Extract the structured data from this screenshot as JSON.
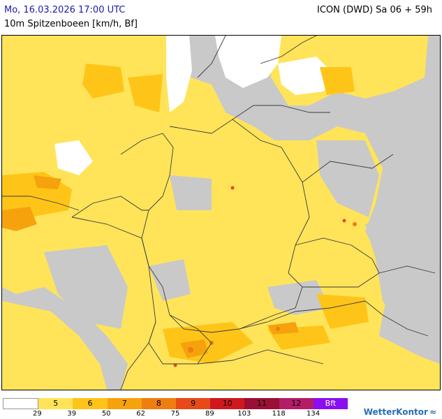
{
  "header": {
    "valid_time": "Mo, 16.03.2026 17:00 UTC",
    "model_run": "ICON (DWD) Sa 06 + 59h",
    "parameter": "10m Spitzenboeen [km/h, Bf]"
  },
  "colors": {
    "land_bg": "#c9c9c9",
    "calm": "#ffffff",
    "bf5": "#ffe45a",
    "bf6": "#fec518",
    "bf7": "#f6a20c",
    "bf8": "#ef7d10",
    "bf9": "#e74a18",
    "bf10": "#d1181c",
    "bf11": "#9b0f34",
    "bf12": "#b51c68",
    "bft": "#8a0ff0",
    "border": "#3a3a3a",
    "brand": "#2a6fb5"
  },
  "legend": {
    "classes": [
      {
        "label": "",
        "color": "#ffffff"
      },
      {
        "label": "5",
        "color": "#ffe45a"
      },
      {
        "label": "6",
        "color": "#fec518"
      },
      {
        "label": "7",
        "color": "#f6a20c"
      },
      {
        "label": "8",
        "color": "#ef7d10"
      },
      {
        "label": "9",
        "color": "#e74a18"
      },
      {
        "label": "10",
        "color": "#d1181c"
      },
      {
        "label": "11",
        "color": "#9b0f34"
      },
      {
        "label": "12",
        "color": "#b51c68"
      },
      {
        "label": "Bft",
        "color": "#8a0ff0"
      }
    ],
    "ticks": [
      "29",
      "39",
      "50",
      "62",
      "75",
      "89",
      "103",
      "118",
      "134"
    ]
  },
  "brand": {
    "name": "WetterKontor",
    "logo_icon": "wave-icon"
  }
}
